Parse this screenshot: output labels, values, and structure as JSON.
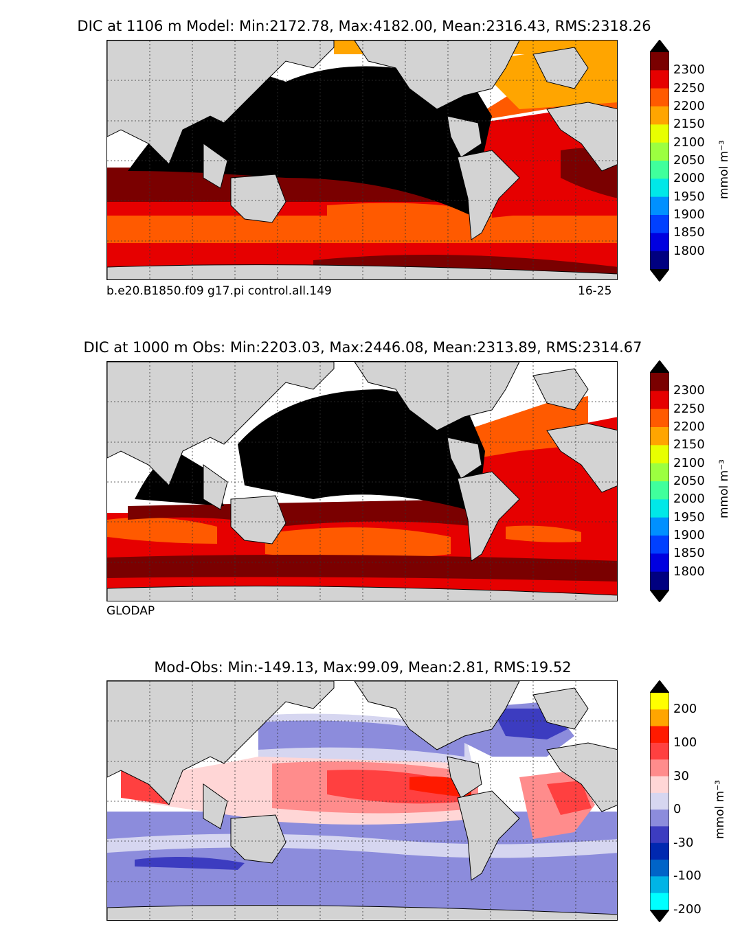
{
  "panels": [
    {
      "title": "DIC at 1106 m Model: Min:2172.78, Max:4182.00, Mean:2316.43, RMS:2318.26",
      "caption_left": "b.e20.B1850.f09 g17.pi control.all.149",
      "caption_right": "16-25"
    },
    {
      "title": "DIC at 1000 m Obs: Min:2203.03, Max:2446.08, Mean:2313.89, RMS:2314.67",
      "caption_left": "GLODAP",
      "caption_right": ""
    },
    {
      "title": "Mod-Obs: Min:-149.13, Max:99.09, Mean:2.81, RMS:19.52",
      "caption_left": "",
      "caption_right": ""
    }
  ],
  "colorbars": [
    {
      "unit": "mmol m⁻³",
      "ticks": [
        "2300",
        "2250",
        "2200",
        "2150",
        "2100",
        "2050",
        "2000",
        "1950",
        "1900",
        "1850",
        "1800"
      ],
      "colors": [
        "#7a0000",
        "#e60000",
        "#ff5a00",
        "#ffa500",
        "#e8ff00",
        "#9cff40",
        "#40ff9c",
        "#00e8e8",
        "#0090ff",
        "#0040ff",
        "#0000e0",
        "#000080"
      ],
      "extend_max": "#000000",
      "extend_min": "#000000"
    },
    {
      "unit": "mmol m⁻³",
      "ticks": [
        "2300",
        "2250",
        "2200",
        "2150",
        "2100",
        "2050",
        "2000",
        "1950",
        "1900",
        "1850",
        "1800"
      ],
      "colors": [
        "#7a0000",
        "#e60000",
        "#ff5a00",
        "#ffa500",
        "#e8ff00",
        "#9cff40",
        "#40ff9c",
        "#00e8e8",
        "#0090ff",
        "#0040ff",
        "#0000e0",
        "#000080"
      ],
      "extend_max": "#000000",
      "extend_min": "#000000"
    },
    {
      "unit": "mmol m⁻³",
      "ticks": [
        "200",
        "100",
        "30",
        "0",
        "-30",
        "-100",
        "-200"
      ],
      "colors": [
        "#ffff00",
        "#ffa500",
        "#ff1a00",
        "#ff4040",
        "#ff8c8c",
        "#ffd6d6",
        "#d6d6f0",
        "#8c8cdc",
        "#3c3cc0",
        "#0028b0",
        "#0064c8",
        "#00b4e6",
        "#00ffff"
      ],
      "extend_max": "#000000",
      "extend_min": "#000000"
    }
  ],
  "chart_data": [
    {
      "type": "heatmap",
      "title": "DIC at 1106 m Model: Min:2172.78, Max:4182.00, Mean:2316.43, RMS:2318.26",
      "field": "DIC",
      "depth_m": 1106,
      "source": "Model",
      "stats": {
        "min": 2172.78,
        "max": 4182.0,
        "mean": 2316.43,
        "rms": 2318.26
      },
      "colorbar_levels": [
        1800,
        1850,
        1900,
        1950,
        2000,
        2050,
        2100,
        2150,
        2200,
        2250,
        2300
      ],
      "units": "mmol m^-3",
      "grid": true
    },
    {
      "type": "heatmap",
      "title": "DIC at 1000 m Obs: Min:2203.03, Max:2446.08, Mean:2313.89, RMS:2314.67",
      "field": "DIC",
      "depth_m": 1000,
      "source": "Obs",
      "stats": {
        "min": 2203.03,
        "max": 2446.08,
        "mean": 2313.89,
        "rms": 2314.67
      },
      "colorbar_levels": [
        1800,
        1850,
        1900,
        1950,
        2000,
        2050,
        2100,
        2150,
        2200,
        2250,
        2300
      ],
      "units": "mmol m^-3",
      "grid": true
    },
    {
      "type": "heatmap",
      "title": "Mod-Obs: Min:-149.13, Max:99.09, Mean:2.81, RMS:19.52",
      "field": "DIC difference",
      "stats": {
        "min": -149.13,
        "max": 99.09,
        "mean": 2.81,
        "rms": 19.52
      },
      "colorbar_levels": [
        -200,
        -100,
        -30,
        0,
        30,
        100,
        200
      ],
      "units": "mmol m^-3",
      "grid": true
    }
  ]
}
